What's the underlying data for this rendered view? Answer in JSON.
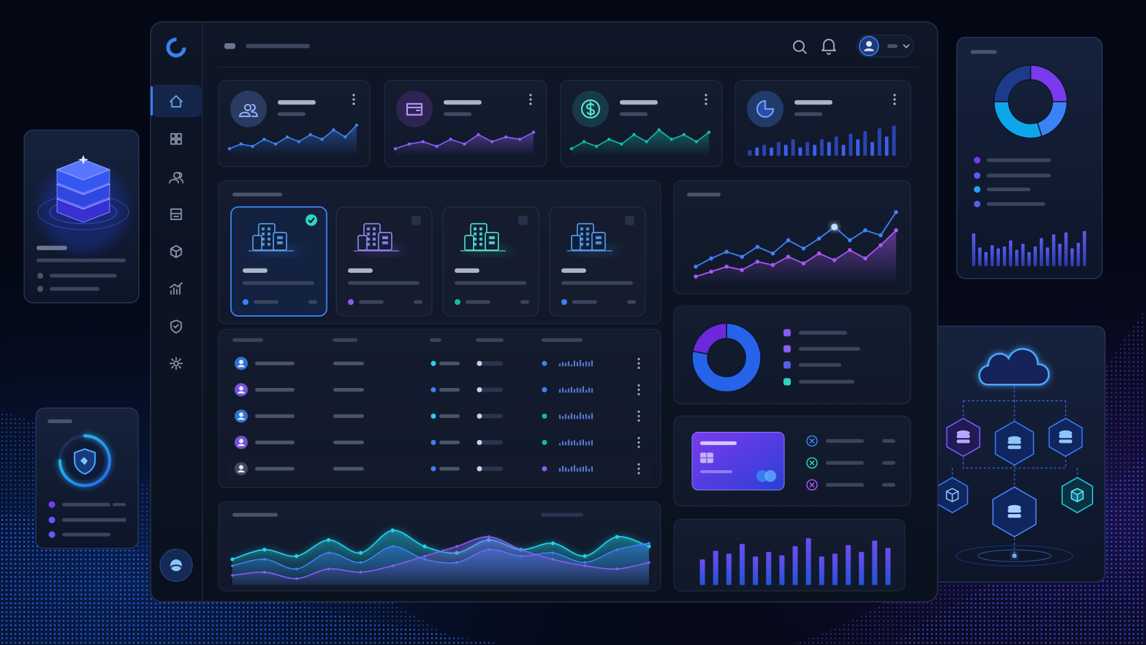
{
  "kpi_cards": [
    {
      "type": "area",
      "color": "#3b82f6",
      "ylim": [
        0,
        14
      ],
      "values": [
        3,
        5,
        4,
        7,
        5,
        8,
        6,
        9,
        7,
        11,
        8,
        13
      ]
    },
    {
      "type": "area",
      "color": "#8b5cf6",
      "ylim": [
        0,
        14
      ],
      "values": [
        3,
        5,
        6,
        4,
        7,
        5,
        9,
        6,
        8,
        7,
        10
      ]
    },
    {
      "type": "area",
      "color": "#14b8a6",
      "ylim": [
        0,
        14
      ],
      "values": [
        3,
        6,
        4,
        7,
        5,
        9,
        6,
        11,
        7,
        9,
        6,
        10
      ]
    },
    {
      "type": "bar",
      "color": "#3b5bd6",
      "ylim": [
        0,
        12
      ],
      "values": [
        2,
        3,
        4,
        3,
        5,
        4,
        6,
        3,
        5,
        4,
        6,
        5,
        7,
        4,
        8,
        6,
        9,
        5,
        10,
        7,
        11
      ]
    }
  ],
  "line_chart": {
    "type": "line",
    "ylim": [
      0,
      100
    ],
    "series": [
      {
        "color": "#3b82f6",
        "values": [
          18,
          28,
          36,
          30,
          42,
          34,
          50,
          40,
          52,
          66,
          50,
          62,
          56,
          84
        ]
      },
      {
        "color": "#a855f7",
        "values": [
          6,
          12,
          18,
          14,
          24,
          20,
          30,
          22,
          34,
          26,
          38,
          28,
          44,
          62
        ]
      }
    ]
  },
  "donut_chart": {
    "type": "pie",
    "values": [
      78,
      22
    ],
    "colors": [
      "#2563eb",
      "#6d28d9"
    ]
  },
  "card_bar_chart": {
    "type": "bar",
    "ylim": [
      0,
      100
    ],
    "values": [
      45,
      60,
      55,
      72,
      50,
      58,
      52,
      68,
      82,
      50,
      55,
      70,
      58,
      78,
      65
    ]
  },
  "wave_chart": {
    "type": "area",
    "ylim": [
      0,
      100
    ],
    "series": [
      {
        "color": "#22d3ee",
        "values": [
          40,
          55,
          45,
          70,
          50,
          85,
          60,
          50,
          70,
          55,
          65,
          45,
          75,
          60
        ]
      },
      {
        "color": "#3b82f6",
        "values": [
          30,
          40,
          25,
          50,
          35,
          60,
          40,
          35,
          55,
          45,
          50,
          35,
          55,
          65
        ]
      },
      {
        "color": "#8b5cf6",
        "values": [
          15,
          20,
          10,
          25,
          20,
          30,
          45,
          60,
          75,
          55,
          40,
          30,
          25,
          35
        ]
      }
    ]
  },
  "table_sparks": {
    "ylim": [
      0,
      10
    ],
    "rows": [
      [
        4,
        6,
        5,
        7,
        3,
        8,
        6,
        9,
        5,
        7,
        6,
        8
      ],
      [
        5,
        7,
        4,
        6,
        8,
        5,
        7,
        6,
        9,
        4,
        7,
        6
      ],
      [
        6,
        4,
        7,
        5,
        8,
        6,
        5,
        9,
        6,
        7,
        5,
        8
      ],
      [
        3,
        6,
        5,
        8,
        6,
        7,
        4,
        7,
        8,
        5,
        6,
        7
      ],
      [
        5,
        8,
        6,
        4,
        7,
        9,
        5,
        6,
        7,
        8,
        4,
        7
      ]
    ]
  },
  "side_donut": {
    "type": "pie",
    "values": [
      25,
      20,
      30,
      25
    ],
    "colors": [
      "#7c3aed",
      "#3b82f6",
      "#0ea5e9",
      "#1e3a8a"
    ]
  },
  "side_bar_chart": {
    "type": "bar",
    "ylim": [
      0,
      100
    ],
    "values": [
      70,
      40,
      30,
      45,
      38,
      42,
      55,
      35,
      48,
      30,
      42,
      60,
      40,
      68,
      48,
      72,
      38,
      50,
      75
    ]
  }
}
